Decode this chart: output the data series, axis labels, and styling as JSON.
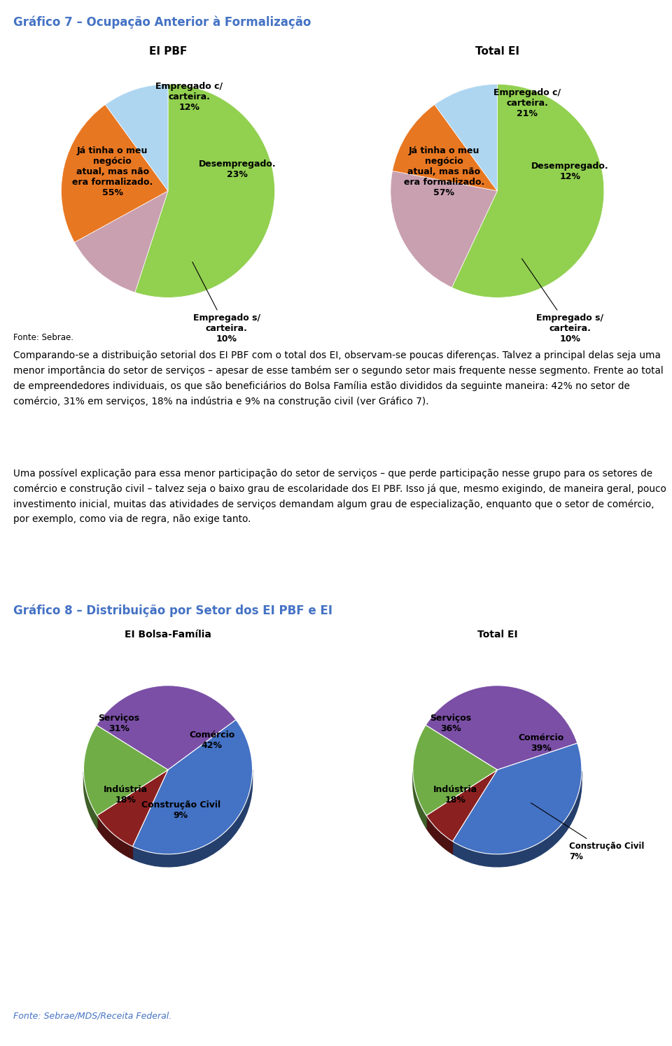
{
  "title1": "Gráfico 7 – Ocupação Anterior à Formalização",
  "title1_color": "#4472C4",
  "subtitle_left1": "EI PBF",
  "subtitle_right1": "Total EI",
  "pie1_values": [
    55,
    12,
    23,
    10
  ],
  "pie1_colors": [
    "#92D050",
    "#C9A0B0",
    "#E87722",
    "#AED6F1"
  ],
  "pie2_values": [
    57,
    21,
    12,
    10
  ],
  "pie2_colors": [
    "#92D050",
    "#C9A0B0",
    "#E87722",
    "#AED6F1"
  ],
  "fonte1": "Fonte: Sebrae.",
  "body_para1": "Comparando-se a distribuição setorial dos EI PBF com o total dos EI, observam-se poucas diferenças. Talvez a principal delas seja uma menor importância do setor de serviços – apesar de esse também ser o segundo setor mais frequente nesse segmento. Frente ao total de empreendedores individuais, os que são beneficiários do Bolsa Família estão divididos da seguinte maneira: 42% no setor de comércio, 31% em serviços, 18% na indústria e 9% na construção civil (ver Gráfico 7).",
  "body_para2": "Uma possível explicação para essa menor participação do setor de serviços – que perde participação nesse grupo para os setores de comércio e construção civil – talvez seja o baixo grau de escolaridade dos EI PBF. Isso já que, mesmo exigindo, de maneira geral, pouco investimento inicial, muitas das atividades de serviços demandam algum grau de especialização, enquanto que o setor de comércio, por exemplo, como via de regra, não exige tanto.",
  "title2": "Gráfico 8 – Distribuição por Setor dos EI PBF e EI",
  "title2_color": "#4472C4",
  "subtitle_left2": "EI Bolsa-Família",
  "subtitle_right2": "Total EI",
  "pie3_values": [
    31,
    42,
    9,
    18
  ],
  "pie3_colors": [
    "#7B4FA6",
    "#4472C4",
    "#8B2020",
    "#70AD47"
  ],
  "pie3_startangle": 148,
  "pie4_values": [
    36,
    39,
    7,
    18
  ],
  "pie4_colors": [
    "#7B4FA6",
    "#4472C4",
    "#8B2020",
    "#70AD47"
  ],
  "pie4_startangle": 148,
  "fonte2": "Fonte: Sebrae/MDS/Receita Federal.",
  "fonte2_color": "#4472C4"
}
